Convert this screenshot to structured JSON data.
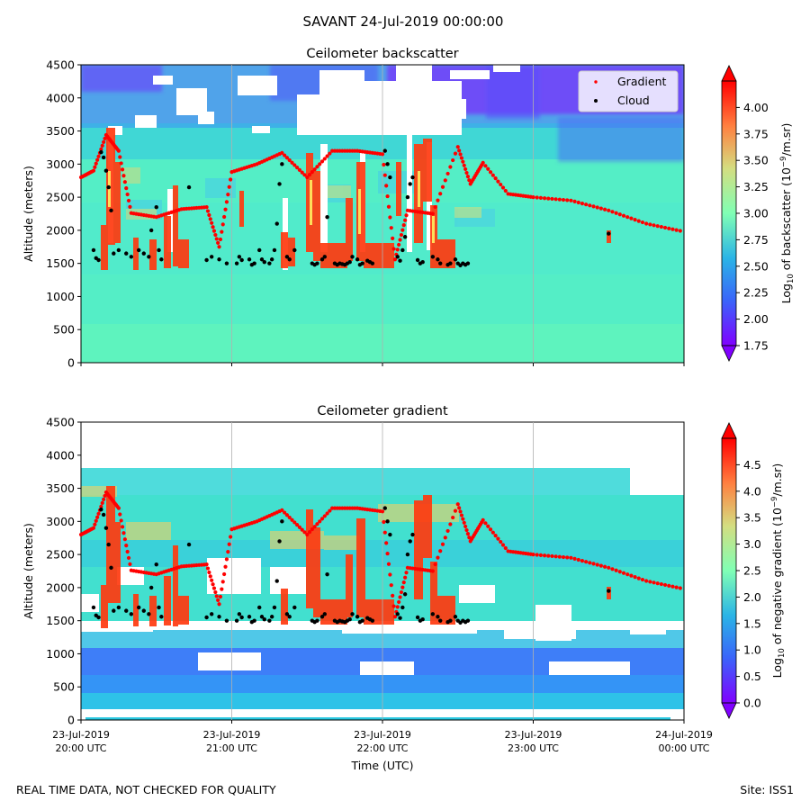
{
  "suptitle": "SAVANT 24-Jul-2019 00:00:00",
  "footer_left": "REAL TIME DATA, NOT CHECKED FOR QUALITY",
  "footer_right": "Site: ISS1",
  "colors": {
    "cloud_marker": "#000000",
    "gradient_marker": "#ff0000",
    "grid": "#b0b0b0",
    "colormap": [
      "#8000ff",
      "#2c7ef7",
      "#2adddd",
      "#80ffb4",
      "#d4dd80",
      "#ff7f40",
      "#ff0000"
    ]
  },
  "chart_data": [
    {
      "type": "heatmap",
      "title": "Ceilometer backscatter",
      "xlabel": "",
      "ylabel": "Altitude (meters)",
      "xlim": [
        "2019-07-23 20:00",
        "2019-07-24 00:00"
      ],
      "ylim": [
        0,
        4500
      ],
      "xticks": [
        "2019-07-23 20:00",
        "2019-07-23 21:00",
        "2019-07-23 22:00",
        "2019-07-23 23:00",
        "2019-07-24 00:00"
      ],
      "yticks": [
        0,
        500,
        1000,
        1500,
        2000,
        2500,
        3000,
        3500,
        4000,
        4500
      ],
      "colorbar": {
        "label": "Log10 of backscatter (10^-9/m.sr)",
        "label_base": "Log",
        "label_sub": "10",
        "label_mid": " of backscatter (10",
        "label_sup": "−9",
        "label_end": "/m.sr)",
        "range": [
          1.75,
          4.25
        ],
        "ticks": [
          "1.75",
          "2.00",
          "2.25",
          "2.50",
          "2.75",
          "3.00",
          "3.25",
          "3.50",
          "3.75",
          "4.00"
        ]
      },
      "grid": "vertical",
      "legend": {
        "placement": "top-right",
        "entries": [
          "Gradient",
          "Cloud"
        ]
      },
      "gradient_trace": [
        {
          "x": "20:00",
          "y": 2800
        },
        {
          "x": "20:05",
          "y": 2900
        },
        {
          "x": "20:10",
          "y": 3440
        },
        {
          "x": "20:15",
          "y": 3200
        },
        {
          "x": "20:20",
          "y": 2260
        },
        {
          "x": "20:30",
          "y": 2200
        },
        {
          "x": "20:40",
          "y": 2320
        },
        {
          "x": "20:50",
          "y": 2350
        },
        {
          "x": "20:55",
          "y": 1750
        },
        {
          "x": "21:00",
          "y": 2880
        },
        {
          "x": "21:10",
          "y": 3000
        },
        {
          "x": "21:20",
          "y": 3170
        },
        {
          "x": "21:30",
          "y": 2800
        },
        {
          "x": "21:40",
          "y": 3200
        },
        {
          "x": "21:50",
          "y": 3200
        },
        {
          "x": "22:00",
          "y": 3150
        },
        {
          "x": "22:05",
          "y": 1560
        },
        {
          "x": "22:10",
          "y": 2300
        },
        {
          "x": "22:20",
          "y": 2250
        },
        {
          "x": "22:30",
          "y": 3260
        },
        {
          "x": "22:35",
          "y": 2700
        },
        {
          "x": "22:40",
          "y": 3020
        },
        {
          "x": "22:50",
          "y": 2550
        },
        {
          "x": "23:00",
          "y": 2500
        },
        {
          "x": "23:15",
          "y": 2450
        },
        {
          "x": "23:30",
          "y": 2300
        },
        {
          "x": "23:45",
          "y": 2100
        },
        {
          "x": "24:00",
          "y": 1980
        }
      ]
    },
    {
      "type": "heatmap",
      "title": "Ceilometer gradient",
      "xlabel": "Time (UTC)",
      "ylabel": "Altitude (meters)",
      "xlim": [
        "2019-07-23 20:00",
        "2019-07-24 00:00"
      ],
      "ylim": [
        0,
        4500
      ],
      "xticks": [
        "23-Jul-2019\n20:00 UTC",
        "23-Jul-2019\n21:00 UTC",
        "23-Jul-2019\n22:00 UTC",
        "23-Jul-2019\n23:00 UTC",
        "24-Jul-2019\n00:00 UTC"
      ],
      "xtick_dates": [
        "23-Jul-2019",
        "23-Jul-2019",
        "23-Jul-2019",
        "23-Jul-2019",
        "24-Jul-2019"
      ],
      "xtick_times": [
        "20:00 UTC",
        "21:00 UTC",
        "22:00 UTC",
        "23:00 UTC",
        "00:00 UTC"
      ],
      "yticks": [
        0,
        500,
        1000,
        1500,
        2000,
        2500,
        3000,
        3500,
        4000,
        4500
      ],
      "colorbar": {
        "label": "Log10 of negative gradient (10^-9/m.sr)",
        "label_base": "Log",
        "label_sub": "10",
        "label_mid": " of negative gradient (10",
        "label_sup": "−9",
        "label_end": "/m.sr)",
        "range": [
          0.0,
          5.0
        ],
        "ticks": [
          "0.0",
          "0.5",
          "1.0",
          "1.5",
          "2.0",
          "2.5",
          "3.0",
          "3.5",
          "4.0",
          "4.5"
        ]
      },
      "grid": "vertical"
    }
  ]
}
